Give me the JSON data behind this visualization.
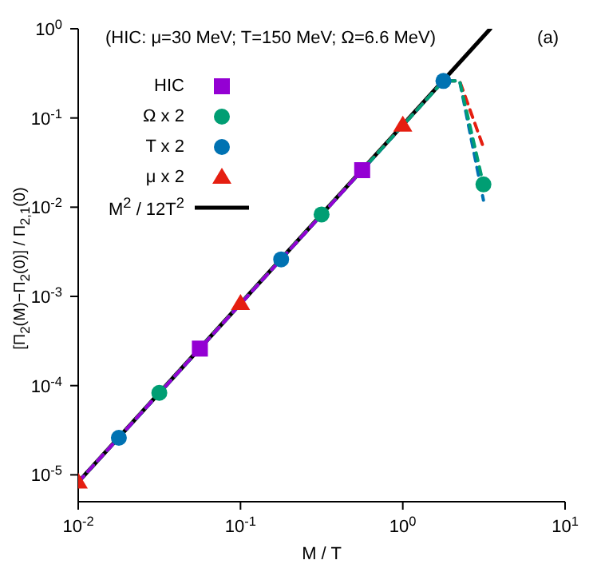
{
  "chart_data": {
    "type": "line",
    "xlabel": "M / T",
    "ylabel": "[Π$_{2}$(M)−Π$_{2}$(0)] / Π$_{2,1}$(0)",
    "annotations": [
      "(HIC: μ=30 MeV; T=150 MeV; Ω=6.6 MeV)",
      "(a)"
    ],
    "log": "xy",
    "grid": false,
    "legend": "top left",
    "xlim": [
      0.01,
      10
    ],
    "xticks": [
      {
        "value": 0.01,
        "label": "10$^{-2}$"
      },
      {
        "value": 0.1,
        "label": "10$^{-1}$"
      },
      {
        "value": 1,
        "label": "10$^{0}$"
      },
      {
        "value": 10,
        "label": "10$^{1}$"
      }
    ],
    "ylim": [
      5e-06,
      1
    ],
    "yticks": [
      {
        "value": 1e-05,
        "label": "10$^{-5}$"
      },
      {
        "value": 0.0001,
        "label": "10$^{-4}$"
      },
      {
        "value": 0.001,
        "label": "10$^{-3}$"
      },
      {
        "value": 0.01,
        "label": "10$^{-2}$"
      },
      {
        "value": 0.1,
        "label": "10$^{-1}$"
      },
      {
        "value": 1,
        "label": "10$^{0}$"
      }
    ],
    "series": [
      {
        "type": "line",
        "color": "#9400d3",
        "line_style": "dashed",
        "marker": "none",
        "x": [
          0.01,
          0.0562,
          0.562
        ],
        "values": [
          8.3e-06,
          0.00026,
          0.026
        ]
      },
      {
        "type": "line",
        "color": "#009e73",
        "line_style": "dashed",
        "marker": "none",
        "x": [
          0.01,
          0.0316,
          0.316,
          1.78,
          2.24,
          3.14
        ],
        "values": [
          8.3e-06,
          8.3e-05,
          0.0083,
          0.26,
          0.26,
          0.018
        ]
      },
      {
        "type": "line",
        "color": "#0072b2",
        "line_style": "dashed",
        "marker": "none",
        "x": [
          0.01,
          0.0178,
          0.178,
          1.78,
          2.24,
          3.14
        ],
        "values": [
          8.3e-06,
          2.6e-05,
          0.0026,
          0.26,
          0.26,
          0.012
        ]
      },
      {
        "type": "line",
        "color": "#e51e10",
        "line_style": "dashed",
        "marker": "none",
        "x": [
          0.01,
          0.1,
          1.0,
          1.78,
          2.24,
          3.1
        ],
        "values": [
          8.3e-06,
          0.00083,
          0.083,
          0.26,
          0.26,
          0.05
        ]
      },
      {
        "type": "scatter",
        "name": "HIC",
        "color": "#9400d3",
        "marker": "square",
        "x": [
          0.0562,
          0.562
        ],
        "values": [
          0.00026,
          0.026
        ]
      },
      {
        "type": "scatter",
        "name": "Ω x 2",
        "color": "#009e73",
        "marker": "circle",
        "x": [
          0.0316,
          0.316,
          3.14
        ],
        "values": [
          8.3e-05,
          0.0083,
          0.018
        ]
      },
      {
        "type": "scatter",
        "name": "T x 2",
        "color": "#0072b2",
        "marker": "circle",
        "x": [
          0.0178,
          0.178,
          1.78
        ],
        "values": [
          2.6e-05,
          0.0026,
          0.26
        ]
      },
      {
        "type": "scatter",
        "name": "μ x 2",
        "color": "#e51e10",
        "marker": "triangle",
        "x": [
          0.01,
          0.1,
          1.0
        ],
        "values": [
          8.3e-06,
          0.00083,
          0.083
        ]
      },
      {
        "type": "line",
        "name": "M$^{2}$ / 12T$^{2}$",
        "color": "#000000",
        "line_style": "solid",
        "marker": "none",
        "x": [
          0.01,
          3.46
        ],
        "values": [
          8.3e-06,
          1
        ]
      }
    ]
  }
}
